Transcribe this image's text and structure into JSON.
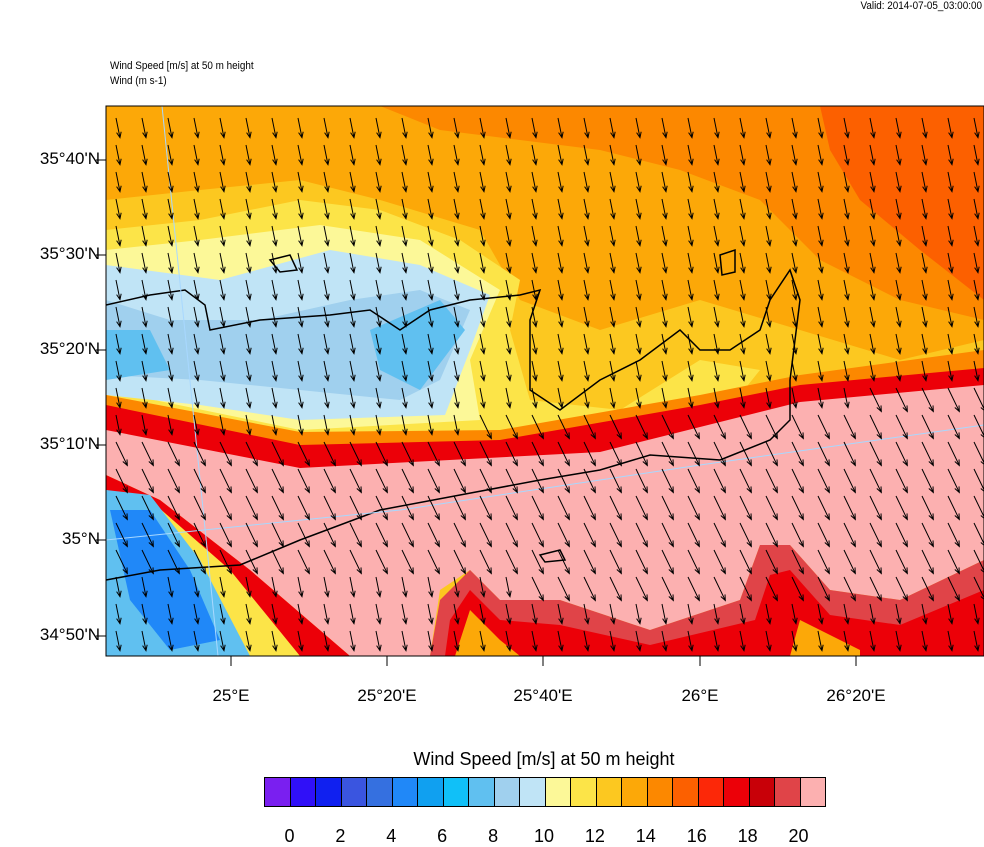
{
  "valid_time": "Valid: 2014-07-05_03:00:00",
  "titles": {
    "field": "Wind Speed [m/s] at 50 m height",
    "vector": "Wind   (m s-1)"
  },
  "axes": {
    "lat_ticks": [
      "35°40'N",
      "35°30'N",
      "35°20'N",
      "35°10'N",
      "35°N",
      "34°50'N"
    ],
    "lon_ticks": [
      "25°E",
      "25°20'E",
      "25°40'E",
      "26°E",
      "26°20'E"
    ]
  },
  "colorbar": {
    "title": "Wind Speed [m/s] at 50 m height",
    "labels": [
      "0",
      "2",
      "4",
      "6",
      "8",
      "10",
      "12",
      "14",
      "16",
      "18",
      "20"
    ],
    "colors": [
      "#7a1ff0",
      "#3010f8",
      "#1020f0",
      "#3a55e0",
      "#3570e0",
      "#2088f8",
      "#10a0f0",
      "#10c0f8",
      "#60c0f0",
      "#a0d0ee",
      "#c0e4f6",
      "#fcf898",
      "#fce448",
      "#fcc820",
      "#fca808",
      "#fc8800",
      "#fc6000",
      "#fc2808",
      "#ec0008",
      "#c80008",
      "#e04448",
      "#fcb0b0"
    ]
  }
}
